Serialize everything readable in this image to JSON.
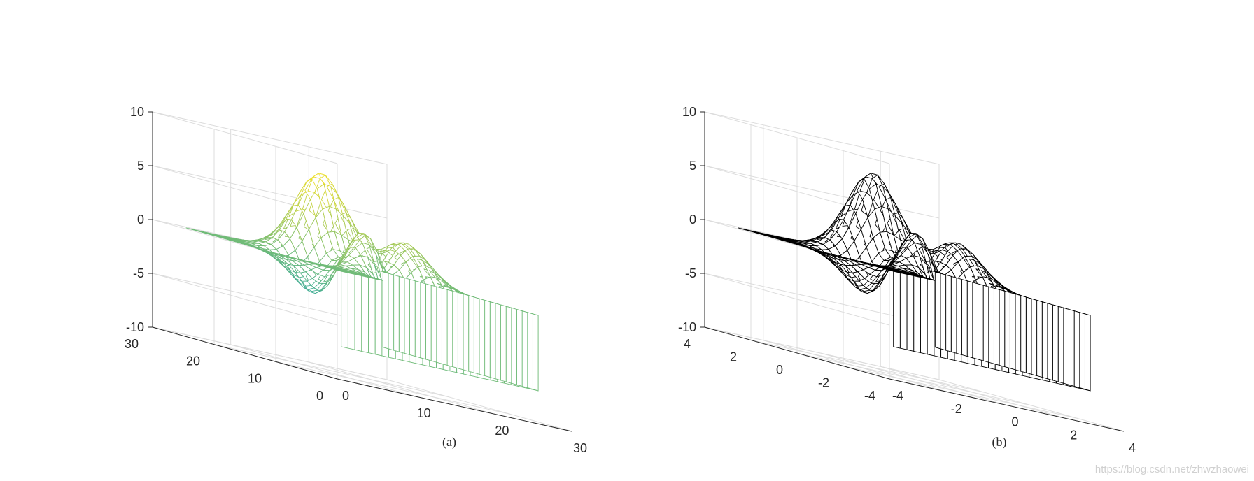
{
  "chart_data": [
    {
      "type": "mesh3d",
      "caption": "(a)",
      "colormap": "parula",
      "surface_function": "peaks",
      "mesh_size": 30,
      "curtain_base_z": -7,
      "x_range": [
        0,
        30
      ],
      "y_range": [
        0,
        30
      ],
      "z_range": [
        -10,
        10
      ],
      "x_ticks": [
        "0",
        "10",
        "20",
        "30"
      ],
      "y_ticks": [
        "0",
        "10",
        "20",
        "30"
      ],
      "z_ticks": [
        "-10",
        "-5",
        "0",
        "5",
        "10"
      ],
      "grid": true,
      "line_color_low": "#0f9fb5",
      "line_color_high": "#f2e026"
    },
    {
      "type": "mesh3d",
      "caption": "(b)",
      "colormap": "black",
      "surface_function": "peaks",
      "mesh_size": 30,
      "curtain_base_z": -7,
      "x_range": [
        -4,
        4
      ],
      "y_range": [
        -4,
        4
      ],
      "z_range": [
        -10,
        10
      ],
      "x_ticks": [
        "-4",
        "-2",
        "0",
        "2",
        "4"
      ],
      "y_ticks": [
        "-4",
        "-2",
        "0",
        "2",
        "4"
      ],
      "z_ticks": [
        "-10",
        "-5",
        "0",
        "5",
        "10"
      ],
      "grid": true,
      "line_color_low": "#000000",
      "line_color_high": "#000000"
    }
  ],
  "watermark": "https://blog.csdn.net/zhwzhaowei"
}
